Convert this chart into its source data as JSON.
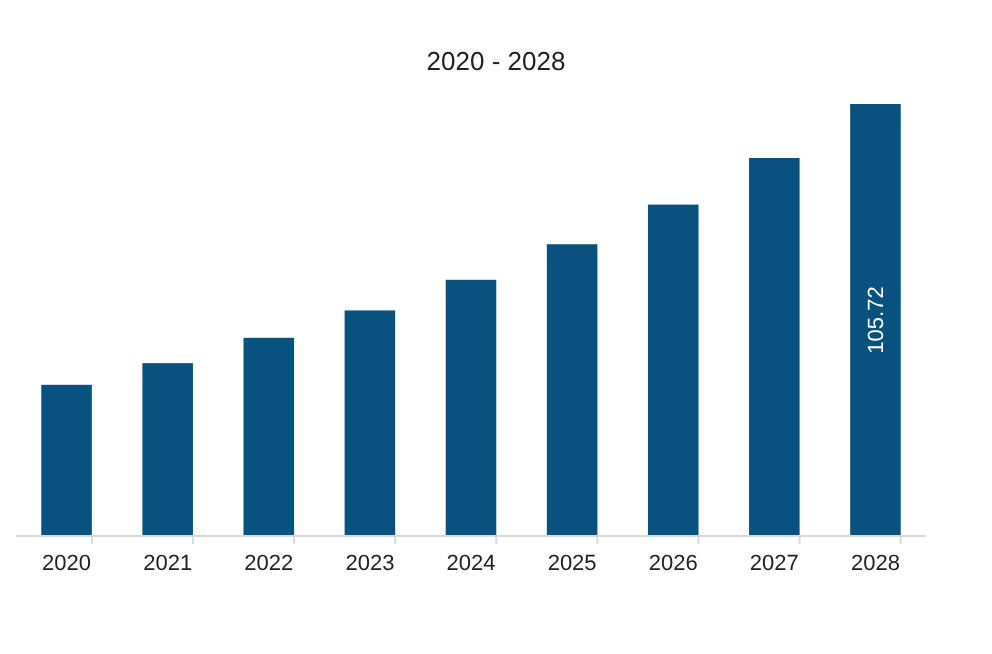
{
  "chart_data": {
    "type": "bar",
    "title": "2020 - 2028",
    "categories": [
      "2020",
      "2021",
      "2022",
      "2023",
      "2024",
      "2025",
      "2026",
      "2027",
      "2028"
    ],
    "values": [
      37.0,
      42.3,
      48.5,
      55.2,
      62.7,
      71.4,
      81.1,
      92.5,
      105.72
    ],
    "value_labels": [
      null,
      null,
      null,
      null,
      null,
      null,
      null,
      null,
      "105.72"
    ],
    "color": "#08527f"
  }
}
